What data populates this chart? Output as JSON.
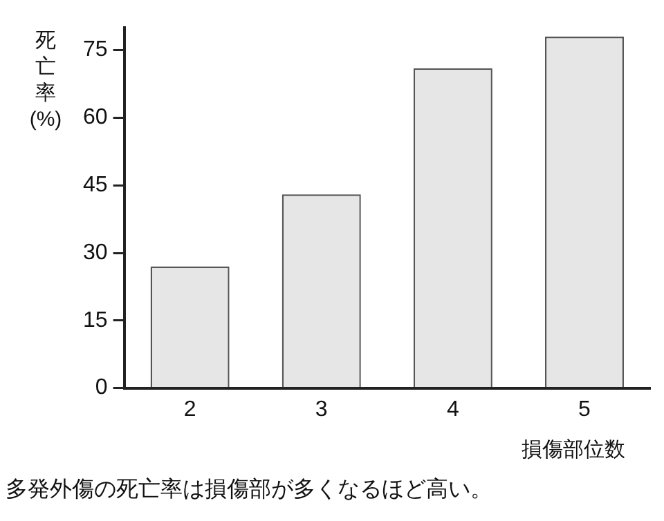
{
  "chart_data": {
    "type": "bar",
    "categories": [
      "2",
      "3",
      "4",
      "5"
    ],
    "values": [
      27,
      43,
      71,
      78
    ],
    "color": "#e6e6e6",
    "ylim": [
      0,
      80
    ],
    "yticks": [
      0,
      15,
      30,
      45,
      60,
      75
    ],
    "ylabel": "死亡率(%)",
    "xlabel": "損傷部位数",
    "grid": false,
    "legend": false,
    "annotations": [
      "多発外傷の死亡率は損傷部が多くなるほど高い。"
    ]
  }
}
